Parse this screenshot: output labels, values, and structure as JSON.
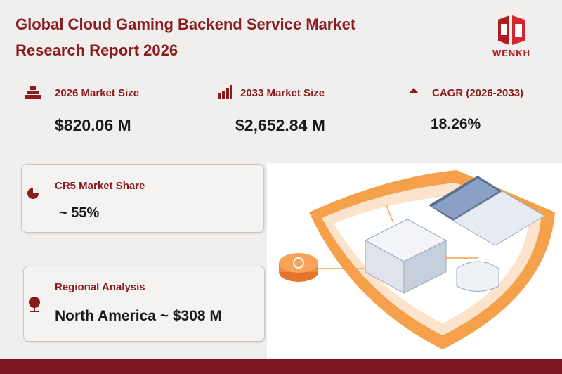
{
  "header": {
    "title": "Global Cloud Gaming Backend Service Market Research Report 2026",
    "logo_text": "WENKH"
  },
  "metrics": [
    {
      "label": "2026 Market Size",
      "value": "$820.06  M"
    },
    {
      "label": "2033 Market Size",
      "value": "$2,652.84  M"
    },
    {
      "label": "CAGR (2026-2033)",
      "value": "18.26%"
    }
  ],
  "cards": [
    {
      "label": "CR5 Market Share",
      "value": "~ 55%"
    },
    {
      "label": "Regional Analysis",
      "value": "North America ~ $308 M"
    }
  ]
}
